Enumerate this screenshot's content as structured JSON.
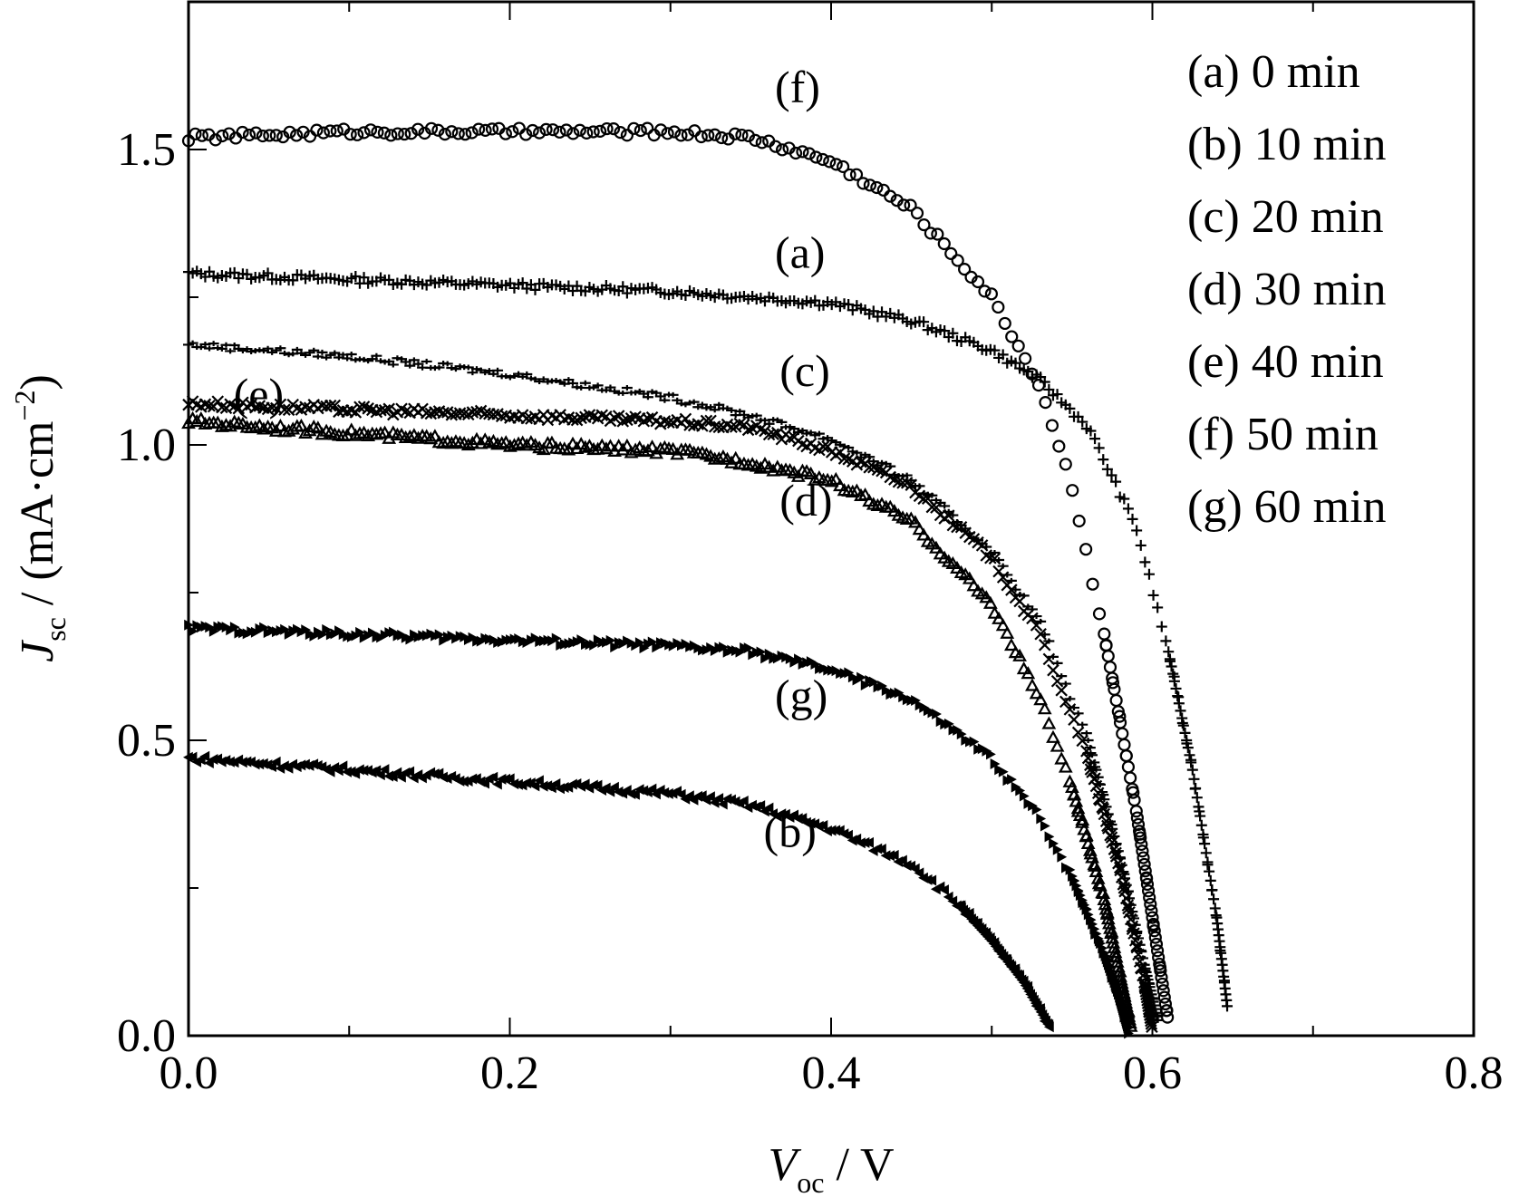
{
  "chart_data": {
    "type": "scatter",
    "xlabel": {
      "main": "V",
      "sub": "oc",
      "unit": " / V"
    },
    "ylabel": {
      "main": "J",
      "sub": "sc",
      "unit": " / (mA·cm",
      "sup": "−2",
      "close": ")"
    },
    "xlim": [
      0.0,
      0.8
    ],
    "ylim": [
      0.0,
      1.75
    ],
    "x_ticks": [
      "0.0",
      "0.2",
      "0.4",
      "0.6",
      "0.8"
    ],
    "y_ticks": [
      "0.0",
      "0.5",
      "1.0",
      "1.5"
    ],
    "grid": false,
    "legend_position": "top-right",
    "series": [
      {
        "id": "a",
        "name": "(a) 0 min",
        "label": "(a)",
        "marker": "plus",
        "x": [
          0.0,
          0.1,
          0.2,
          0.3,
          0.4,
          0.45,
          0.5,
          0.53,
          0.56,
          0.59,
          0.61,
          0.625,
          0.64,
          0.647
        ],
        "y": [
          1.29,
          1.28,
          1.27,
          1.26,
          1.24,
          1.21,
          1.16,
          1.11,
          1.03,
          0.86,
          0.65,
          0.45,
          0.2,
          0.04
        ]
      },
      {
        "id": "b",
        "name": "(b) 10 min",
        "label": "(b)",
        "marker": "triangle-left",
        "x": [
          0.0,
          0.1,
          0.2,
          0.3,
          0.35,
          0.4,
          0.45,
          0.48,
          0.5,
          0.52,
          0.537
        ],
        "y": [
          0.47,
          0.45,
          0.43,
          0.41,
          0.39,
          0.35,
          0.29,
          0.22,
          0.16,
          0.09,
          0.01
        ]
      },
      {
        "id": "c",
        "name": "(c) 20 min",
        "label": "(c)",
        "marker": "dash",
        "x": [
          0.0,
          0.1,
          0.2,
          0.3,
          0.35,
          0.4,
          0.45,
          0.5,
          0.53,
          0.56,
          0.58,
          0.595,
          0.604
        ],
        "y": [
          1.17,
          1.15,
          1.12,
          1.08,
          1.05,
          1.01,
          0.94,
          0.82,
          0.7,
          0.5,
          0.3,
          0.12,
          0.02
        ]
      },
      {
        "id": "d",
        "name": "(d) 30 min",
        "label": "(d)",
        "marker": "cross",
        "x": [
          0.0,
          0.1,
          0.2,
          0.3,
          0.35,
          0.4,
          0.45,
          0.5,
          0.53,
          0.56,
          0.58,
          0.595,
          0.6
        ],
        "y": [
          1.07,
          1.06,
          1.05,
          1.04,
          1.03,
          0.99,
          0.93,
          0.81,
          0.68,
          0.47,
          0.28,
          0.09,
          0.01
        ]
      },
      {
        "id": "e",
        "name": "(e) 40 min",
        "label": "(e)",
        "marker": "triangle-up",
        "x": [
          0.0,
          0.1,
          0.2,
          0.3,
          0.35,
          0.4,
          0.45,
          0.5,
          0.53,
          0.55,
          0.57,
          0.58,
          0.587
        ],
        "y": [
          1.04,
          1.02,
          1.0,
          0.99,
          0.97,
          0.94,
          0.87,
          0.73,
          0.57,
          0.42,
          0.23,
          0.1,
          0.01
        ]
      },
      {
        "id": "f",
        "name": "(f) 50 min",
        "label": "(f)",
        "marker": "circle",
        "x": [
          0.0,
          0.1,
          0.2,
          0.3,
          0.35,
          0.4,
          0.45,
          0.5,
          0.53,
          0.55,
          0.57,
          0.59,
          0.6,
          0.61
        ],
        "y": [
          1.52,
          1.53,
          1.53,
          1.53,
          1.52,
          1.48,
          1.4,
          1.25,
          1.1,
          0.93,
          0.68,
          0.38,
          0.2,
          0.02
        ]
      },
      {
        "id": "g",
        "name": "(g) 60 min",
        "label": "(g)",
        "marker": "triangle-right",
        "x": [
          0.0,
          0.1,
          0.2,
          0.3,
          0.35,
          0.4,
          0.45,
          0.5,
          0.53,
          0.55,
          0.57,
          0.58,
          0.585
        ],
        "y": [
          0.69,
          0.68,
          0.67,
          0.66,
          0.65,
          0.62,
          0.57,
          0.47,
          0.37,
          0.27,
          0.14,
          0.06,
          0.01
        ]
      }
    ],
    "curve_labels": [
      {
        "text": "(f)",
        "x": 0.365,
        "y": 1.58
      },
      {
        "text": "(a)",
        "x": 0.365,
        "y": 1.3
      },
      {
        "text": "(c)",
        "x": 0.368,
        "y": 1.1
      },
      {
        "text": "(e)",
        "x": 0.028,
        "y": 1.06
      },
      {
        "text": "(d)",
        "x": 0.368,
        "y": 0.88
      },
      {
        "text": "(g)",
        "x": 0.365,
        "y": 0.55
      },
      {
        "text": "(b)",
        "x": 0.358,
        "y": 0.32
      }
    ]
  }
}
